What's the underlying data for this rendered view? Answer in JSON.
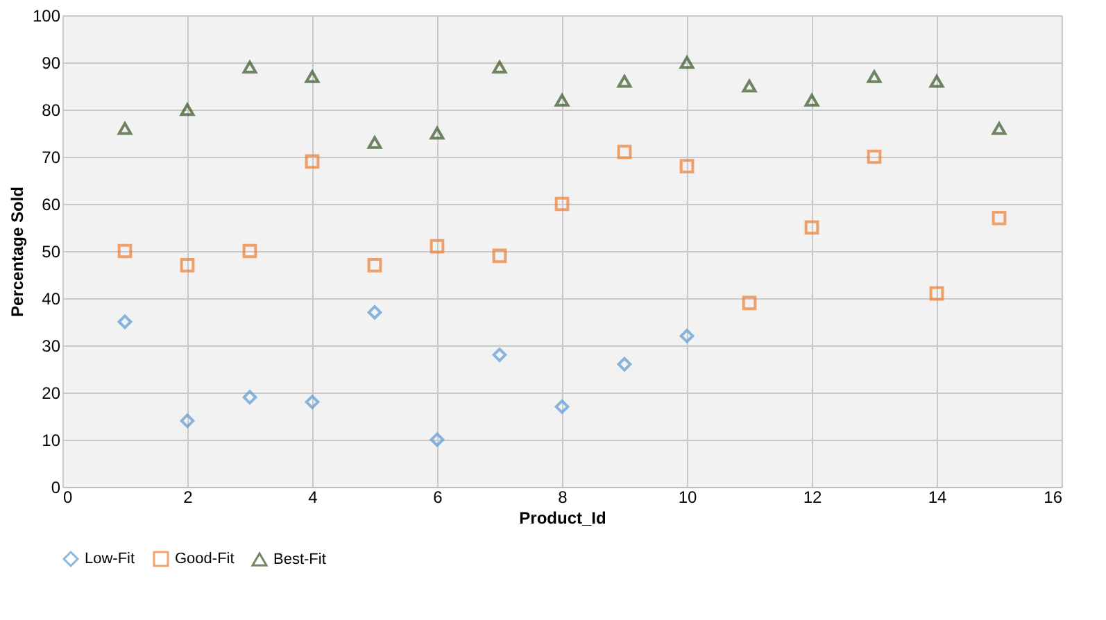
{
  "chart_data": {
    "type": "scatter",
    "xlabel": "Product_Id",
    "ylabel": "Percentage Sold",
    "series": [
      {
        "name": "Low-Fit",
        "color": "#5b9bd5",
        "marker": "diamond",
        "x": [
          1,
          2,
          3,
          4,
          5,
          6,
          7,
          8,
          9,
          10
        ],
        "values": [
          35,
          14,
          19,
          18,
          37,
          10,
          28,
          17,
          26,
          32
        ]
      },
      {
        "name": "Good-Fit",
        "color": "#ed7d31",
        "marker": "square",
        "x": [
          1,
          2,
          3,
          4,
          5,
          6,
          7,
          8,
          9,
          10,
          11,
          12,
          13,
          14,
          15
        ],
        "values": [
          50,
          47,
          50,
          69,
          47,
          51,
          49,
          60,
          71,
          68,
          39,
          55,
          70,
          41,
          57
        ]
      },
      {
        "name": "Best-Fit",
        "color": "#375623",
        "marker": "triangle",
        "x": [
          1,
          2,
          3,
          4,
          5,
          6,
          7,
          8,
          9,
          10,
          11,
          12,
          13,
          14,
          15
        ],
        "values": [
          76,
          80,
          89,
          87,
          73,
          75,
          89,
          82,
          86,
          90,
          85,
          82,
          87,
          86,
          76
        ]
      }
    ],
    "xlim": [
      0,
      16
    ],
    "xticks": [
      0,
      2,
      4,
      6,
      8,
      10,
      12,
      14,
      16
    ],
    "ylim": [
      0,
      100
    ],
    "yticks": [
      0,
      10,
      20,
      30,
      40,
      50,
      60,
      70,
      80,
      90,
      100
    ],
    "grid": true,
    "legend": "bottom"
  }
}
